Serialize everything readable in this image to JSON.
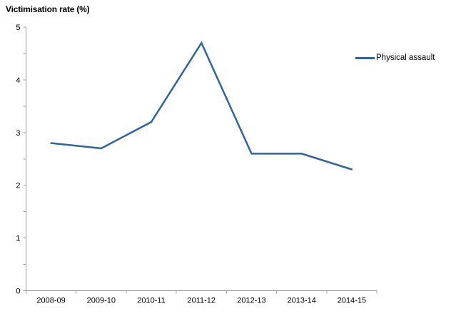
{
  "chart_data": {
    "type": "line",
    "title": "Victimisation rate (%)",
    "categories": [
      "2008-09",
      "2009-10",
      "2010-11",
      "2011-12",
      "2012-13",
      "2013-14",
      "2014-15"
    ],
    "series": [
      {
        "name": "Physical assault",
        "values": [
          2.8,
          2.7,
          3.2,
          4.7,
          2.6,
          2.6,
          2.3
        ],
        "color": "#31639C"
      }
    ],
    "xlabel": "",
    "ylabel": "Victimisation rate (%)",
    "ylim": [
      0,
      5
    ],
    "y_tick_step": 0.5,
    "y_label_step": 1,
    "y_tick_labels": [
      "0",
      "1",
      "2",
      "3",
      "4",
      "5"
    ],
    "grid": "off",
    "legend_position": "right-top",
    "colors": {
      "axis": "#9d9d9d",
      "text": "#000000",
      "background": "#ffffff"
    }
  }
}
